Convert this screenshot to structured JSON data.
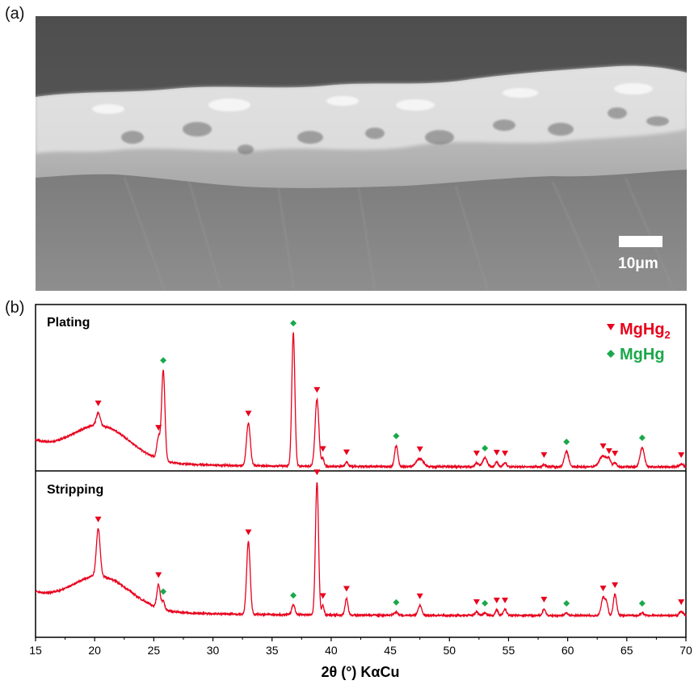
{
  "panels": {
    "a_label": "(a)",
    "b_label": "(b)"
  },
  "sem": {
    "scale_bar_label": "10μm",
    "scale_bar_value_um": 10
  },
  "chart_data": {
    "type": "line",
    "xlabel": "2θ (°) KαCu",
    "xlim": [
      15,
      70
    ],
    "xticks": [
      15,
      20,
      25,
      30,
      35,
      40,
      45,
      50,
      55,
      60,
      65,
      70
    ],
    "legend": {
      "placement": "top-right",
      "entries": [
        {
          "name": "MgHg2",
          "display_main": "MgHg",
          "display_sub": "2",
          "marker": "triangle-down",
          "color": "#e8001c"
        },
        {
          "name": "MgHg",
          "display_main": "MgHg",
          "display_sub": "",
          "marker": "diamond",
          "color": "#1aa84a"
        }
      ]
    },
    "line_color": "#e8001c",
    "series": [
      {
        "name": "Plating",
        "peaks": [
          {
            "x": 20.3,
            "y": 15,
            "w": 0.16
          },
          {
            "x": 25.4,
            "y": 27,
            "w": 0.14
          },
          {
            "x": 25.8,
            "y": 112,
            "w": 0.14
          },
          {
            "x": 33.0,
            "y": 53,
            "w": 0.16
          },
          {
            "x": 36.8,
            "y": 165,
            "w": 0.13
          },
          {
            "x": 38.8,
            "y": 83,
            "w": 0.16
          },
          {
            "x": 39.3,
            "y": 10,
            "w": 0.1
          },
          {
            "x": 41.3,
            "y": 6,
            "w": 0.12
          },
          {
            "x": 45.5,
            "y": 26,
            "w": 0.14
          },
          {
            "x": 47.5,
            "y": 10,
            "w": 0.3
          },
          {
            "x": 52.3,
            "y": 5,
            "w": 0.14
          },
          {
            "x": 53.0,
            "y": 11,
            "w": 0.2
          },
          {
            "x": 54.0,
            "y": 6,
            "w": 0.12
          },
          {
            "x": 54.7,
            "y": 5,
            "w": 0.14
          },
          {
            "x": 58.0,
            "y": 3,
            "w": 0.12
          },
          {
            "x": 59.9,
            "y": 19,
            "w": 0.18
          },
          {
            "x": 63.0,
            "y": 14,
            "w": 0.3
          },
          {
            "x": 63.5,
            "y": 8,
            "w": 0.14
          },
          {
            "x": 64.0,
            "y": 5,
            "w": 0.14
          },
          {
            "x": 66.3,
            "y": 24,
            "w": 0.18
          },
          {
            "x": 69.6,
            "y": 3,
            "w": 0.2
          }
        ],
        "markers": [
          {
            "x": 20.3,
            "phase": "MgHg2"
          },
          {
            "x": 25.4,
            "phase": "MgHg2"
          },
          {
            "x": 25.8,
            "phase": "MgHg"
          },
          {
            "x": 33.0,
            "phase": "MgHg2"
          },
          {
            "x": 36.8,
            "phase": "MgHg"
          },
          {
            "x": 38.8,
            "phase": "MgHg2"
          },
          {
            "x": 39.3,
            "phase": "MgHg2"
          },
          {
            "x": 41.3,
            "phase": "MgHg2"
          },
          {
            "x": 45.5,
            "phase": "MgHg"
          },
          {
            "x": 47.5,
            "phase": "MgHg2"
          },
          {
            "x": 52.3,
            "phase": "MgHg2"
          },
          {
            "x": 53.0,
            "phase": "MgHg"
          },
          {
            "x": 54.0,
            "phase": "MgHg2"
          },
          {
            "x": 54.7,
            "phase": "MgHg2"
          },
          {
            "x": 58.0,
            "phase": "MgHg2"
          },
          {
            "x": 59.9,
            "phase": "MgHg"
          },
          {
            "x": 63.0,
            "phase": "MgHg2"
          },
          {
            "x": 63.5,
            "phase": "MgHg2"
          },
          {
            "x": 64.0,
            "phase": "MgHg2"
          },
          {
            "x": 66.3,
            "phase": "MgHg"
          },
          {
            "x": 69.6,
            "phase": "MgHg2"
          }
        ]
      },
      {
        "name": "Stripping",
        "peaks": [
          {
            "x": 20.3,
            "y": 58,
            "w": 0.16
          },
          {
            "x": 25.4,
            "y": 29,
            "w": 0.14
          },
          {
            "x": 25.8,
            "y": 10,
            "w": 0.12
          },
          {
            "x": 33.0,
            "y": 90,
            "w": 0.15
          },
          {
            "x": 36.8,
            "y": 12,
            "w": 0.14
          },
          {
            "x": 38.8,
            "y": 165,
            "w": 0.13
          },
          {
            "x": 39.3,
            "y": 12,
            "w": 0.1
          },
          {
            "x": 41.3,
            "y": 21,
            "w": 0.12
          },
          {
            "x": 45.5,
            "y": 4,
            "w": 0.14
          },
          {
            "x": 47.5,
            "y": 12,
            "w": 0.16
          },
          {
            "x": 52.3,
            "y": 5,
            "w": 0.12
          },
          {
            "x": 53.0,
            "y": 3,
            "w": 0.14
          },
          {
            "x": 54.0,
            "y": 7,
            "w": 0.12
          },
          {
            "x": 54.7,
            "y": 7,
            "w": 0.14
          },
          {
            "x": 58.0,
            "y": 8,
            "w": 0.12
          },
          {
            "x": 59.9,
            "y": 3,
            "w": 0.14
          },
          {
            "x": 63.0,
            "y": 22,
            "w": 0.16
          },
          {
            "x": 63.3,
            "y": 14,
            "w": 0.12
          },
          {
            "x": 64.0,
            "y": 26,
            "w": 0.14
          },
          {
            "x": 66.3,
            "y": 3,
            "w": 0.14
          },
          {
            "x": 69.6,
            "y": 5,
            "w": 0.16
          }
        ],
        "markers": [
          {
            "x": 20.3,
            "phase": "MgHg2"
          },
          {
            "x": 25.4,
            "phase": "MgHg2"
          },
          {
            "x": 25.8,
            "phase": "MgHg"
          },
          {
            "x": 33.0,
            "phase": "MgHg2"
          },
          {
            "x": 36.8,
            "phase": "MgHg"
          },
          {
            "x": 38.8,
            "phase": "MgHg2"
          },
          {
            "x": 39.3,
            "phase": "MgHg2"
          },
          {
            "x": 41.3,
            "phase": "MgHg2"
          },
          {
            "x": 45.5,
            "phase": "MgHg"
          },
          {
            "x": 47.5,
            "phase": "MgHg2"
          },
          {
            "x": 52.3,
            "phase": "MgHg2"
          },
          {
            "x": 53.0,
            "phase": "MgHg"
          },
          {
            "x": 54.0,
            "phase": "MgHg2"
          },
          {
            "x": 54.7,
            "phase": "MgHg2"
          },
          {
            "x": 58.0,
            "phase": "MgHg2"
          },
          {
            "x": 59.9,
            "phase": "MgHg"
          },
          {
            "x": 63.0,
            "phase": "MgHg2"
          },
          {
            "x": 64.0,
            "phase": "MgHg2"
          },
          {
            "x": 66.3,
            "phase": "MgHg"
          },
          {
            "x": 69.6,
            "phase": "MgHg2"
          }
        ]
      }
    ]
  }
}
